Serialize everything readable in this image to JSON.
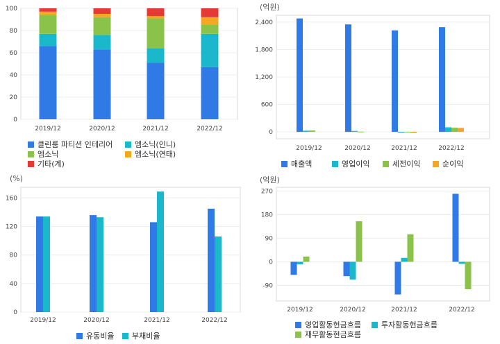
{
  "chart_data": [
    {
      "id": "c1",
      "type": "bar",
      "stacked": true,
      "categories": [
        "2019/12",
        "2020/12",
        "2021/12",
        "2022/12"
      ],
      "ylim": [
        0,
        100
      ],
      "yticks": [
        0,
        20,
        40,
        60,
        80,
        100
      ],
      "unit": "",
      "series": [
        {
          "name": "클린룸 파티션 인테리어",
          "color": "#2f7ae5",
          "values": [
            66,
            63,
            51,
            47
          ]
        },
        {
          "name": "엠소닉(인니)",
          "color": "#1bb8cc",
          "values": [
            11,
            13,
            13,
            30
          ]
        },
        {
          "name": "엠소닉",
          "color": "#8bc34a",
          "values": [
            17,
            16,
            27,
            8
          ]
        },
        {
          "name": "엠소닉(연태)",
          "color": "#f5a623",
          "values": [
            3,
            3,
            2,
            7
          ]
        },
        {
          "name": "기타(계)",
          "color": "#e53935",
          "values": [
            3,
            5,
            7,
            8
          ]
        }
      ]
    },
    {
      "id": "c2",
      "type": "bar",
      "categories": [
        "2019/12",
        "2020/12",
        "2021/12",
        "2022/12"
      ],
      "ylim": [
        -150,
        2550
      ],
      "yticks": [
        0,
        600,
        1200,
        1800,
        2400
      ],
      "tick_labels": [
        "0",
        "600",
        "1,200",
        "1,800",
        "2,400"
      ],
      "unit": "(억원)",
      "series": [
        {
          "name": "매출액",
          "color": "#2f7ae5",
          "values": [
            2480,
            2350,
            2220,
            2290
          ]
        },
        {
          "name": "영업이익",
          "color": "#1bb8cc",
          "values": [
            25,
            20,
            -20,
            100
          ]
        },
        {
          "name": "세전이익",
          "color": "#8bc34a",
          "values": [
            30,
            5,
            -15,
            90
          ]
        },
        {
          "name": "순이익",
          "color": "#f5a623",
          "values": [
            0,
            0,
            -25,
            85
          ]
        }
      ]
    },
    {
      "id": "c3",
      "type": "bar",
      "categories": [
        "2019/12",
        "2020/12",
        "2021/12",
        "2022/12"
      ],
      "ylim": [
        0,
        175
      ],
      "yticks": [
        0,
        40,
        80,
        120,
        160
      ],
      "unit": "(%)",
      "series": [
        {
          "name": "유동비율",
          "color": "#2f7ae5",
          "values": [
            134,
            136,
            126,
            145
          ]
        },
        {
          "name": "부채비율",
          "color": "#1bb8cc",
          "values": [
            134,
            133,
            169,
            106
          ]
        }
      ]
    },
    {
      "id": "c4",
      "type": "bar",
      "categories": [
        "2019/12",
        "2020/12",
        "2021/12",
        "2022/12"
      ],
      "ylim": [
        -150,
        285
      ],
      "yticks": [
        -90,
        0,
        90,
        180,
        270
      ],
      "unit": "(억원)",
      "series": [
        {
          "name": "영업활동현금흐름",
          "color": "#2f7ae5",
          "values": [
            -50,
            -55,
            -125,
            260
          ]
        },
        {
          "name": "투자활동현금흐름",
          "color": "#1bb8cc",
          "values": [
            -10,
            -68,
            15,
            -8
          ]
        },
        {
          "name": "재무활동현금흐름",
          "color": "#8bc34a",
          "values": [
            20,
            155,
            105,
            -105
          ]
        }
      ]
    }
  ]
}
